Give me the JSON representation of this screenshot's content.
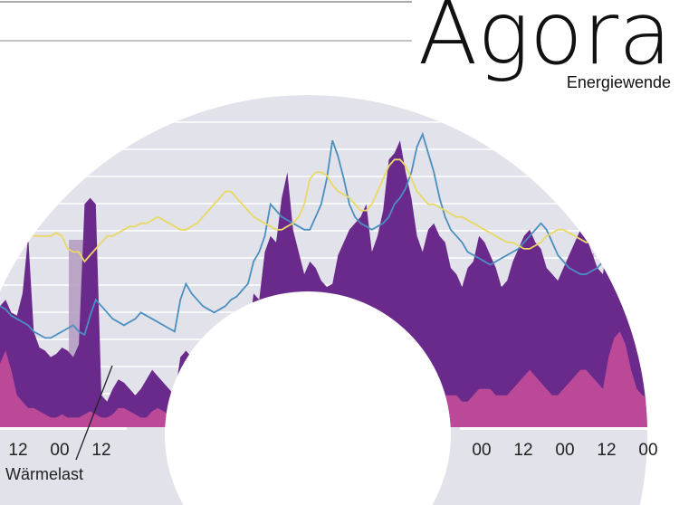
{
  "logo": {
    "word": "Agora",
    "sub": "Energiewende"
  },
  "annotation": {
    "label": "Wärmelast"
  },
  "chart_data": {
    "type": "area",
    "layout": "radial half-ring time series (partial view)",
    "grid": true,
    "legend": "none",
    "x_tick_labels_left": [
      "12",
      "00",
      "12"
    ],
    "x_tick_labels_right": [
      "00",
      "12",
      "00",
      "12",
      "00"
    ],
    "series": [
      {
        "kind": "area",
        "color": "#6a2a8c",
        "values": [
          38,
          40,
          36,
          35,
          42,
          60,
          30,
          25,
          24,
          22,
          23,
          25,
          24,
          22,
          26,
          70,
          72,
          70,
          10,
          8,
          12,
          15,
          14,
          12,
          10,
          12,
          15,
          18,
          16,
          14,
          12,
          10,
          22,
          24,
          22,
          20,
          20,
          18,
          16,
          14,
          14,
          16,
          18,
          22,
          28,
          42,
          40,
          55,
          60,
          58,
          72,
          80,
          62,
          55,
          48,
          52,
          50,
          46,
          44,
          45,
          54,
          58,
          62,
          64,
          66,
          70,
          55,
          60,
          68,
          84,
          86,
          90,
          80,
          72,
          60,
          55,
          62,
          64,
          60,
          58,
          50,
          48,
          44,
          50,
          52,
          60,
          58,
          54,
          50,
          44,
          46,
          52,
          56,
          60,
          62,
          58,
          56,
          50,
          48,
          46,
          50,
          54,
          58,
          62,
          60,
          55,
          50,
          48,
          62,
          66,
          70,
          68,
          56,
          46,
          40,
          36,
          42
        ]
      },
      {
        "kind": "area",
        "color": "#c04b99",
        "values": [
          20,
          24,
          18,
          10,
          8,
          6,
          6,
          5,
          4,
          3,
          3,
          4,
          3,
          3,
          3,
          4,
          5,
          4,
          3,
          3,
          4,
          6,
          6,
          5,
          4,
          3,
          3,
          5,
          6,
          5,
          4,
          4,
          4,
          4,
          4,
          5,
          5,
          4,
          4,
          4,
          4,
          5,
          5,
          6,
          6,
          8,
          8,
          8,
          9,
          9,
          10,
          10,
          9,
          9,
          10,
          10,
          8,
          8,
          8,
          8,
          10,
          10,
          10,
          12,
          14,
          14,
          12,
          12,
          14,
          16,
          18,
          18,
          16,
          14,
          12,
          10,
          10,
          12,
          12,
          10,
          10,
          10,
          8,
          8,
          10,
          12,
          12,
          12,
          10,
          10,
          10,
          12,
          14,
          16,
          18,
          16,
          14,
          12,
          10,
          10,
          12,
          14,
          16,
          18,
          18,
          16,
          14,
          12,
          22,
          28,
          30,
          26,
          18,
          12,
          10,
          9,
          8
        ]
      },
      {
        "kind": "line",
        "color": "#4a8fc0",
        "values": [
          38,
          37,
          35,
          34,
          33,
          32,
          30,
          29,
          28,
          28,
          29,
          30,
          31,
          32,
          30,
          29,
          35,
          40,
          38,
          36,
          34,
          33,
          32,
          33,
          34,
          36,
          35,
          34,
          33,
          32,
          31,
          30,
          40,
          45,
          42,
          40,
          38,
          37,
          36,
          37,
          38,
          40,
          41,
          43,
          45,
          52,
          55,
          60,
          70,
          68,
          66,
          65,
          64,
          63,
          62,
          62,
          66,
          70,
          78,
          90,
          85,
          78,
          70,
          66,
          64,
          63,
          62,
          63,
          64,
          66,
          70,
          72,
          75,
          80,
          88,
          92,
          86,
          80,
          72,
          66,
          62,
          60,
          58,
          55,
          54,
          53,
          52,
          51,
          52,
          53,
          54,
          55,
          56,
          58,
          60,
          62,
          64,
          62,
          58,
          54,
          52,
          50,
          49,
          48,
          48,
          49,
          50,
          52,
          58,
          56,
          54,
          52,
          50,
          48,
          47,
          46,
          45
        ]
      },
      {
        "kind": "line",
        "color": "#e8d866",
        "values": [
          62,
          62,
          62,
          61,
          61,
          61,
          60,
          60,
          60,
          60,
          61,
          60,
          56,
          55,
          55,
          52,
          54,
          56,
          58,
          60,
          60,
          61,
          62,
          63,
          63,
          64,
          64,
          65,
          66,
          65,
          64,
          63,
          62,
          62,
          63,
          64,
          66,
          68,
          70,
          72,
          74,
          74,
          72,
          70,
          68,
          66,
          65,
          64,
          63,
          62,
          62,
          63,
          64,
          66,
          70,
          78,
          80,
          80,
          79,
          76,
          74,
          73,
          72,
          70,
          68,
          68,
          70,
          74,
          78,
          82,
          84,
          84,
          82,
          78,
          74,
          72,
          70,
          70,
          69,
          68,
          67,
          66,
          66,
          65,
          64,
          63,
          62,
          61,
          60,
          59,
          58,
          58,
          57,
          56,
          56,
          57,
          58,
          60,
          61,
          62,
          62,
          61,
          60,
          59,
          58,
          58,
          57,
          56,
          56,
          57,
          58,
          59,
          60,
          61,
          62,
          62,
          62
        ]
      }
    ]
  }
}
